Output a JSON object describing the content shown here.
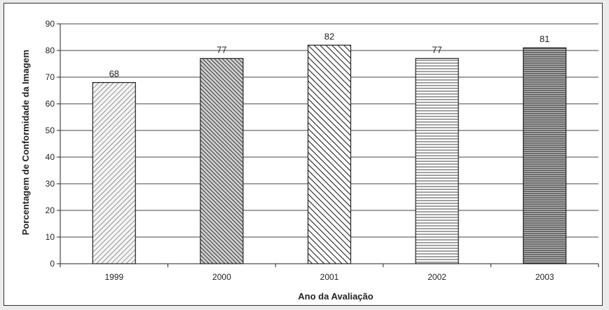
{
  "chart_data": {
    "type": "bar",
    "categories": [
      "1999",
      "2000",
      "2001",
      "2002",
      "2003"
    ],
    "values": [
      68,
      77,
      82,
      77,
      81
    ],
    "data_labels": [
      "68",
      "77",
      "82",
      "77",
      "81"
    ],
    "title": "",
    "xlabel": "Ano da Avaliação",
    "ylabel": "Porcentagem de Conformidade da Imagem",
    "ylim": [
      0,
      90
    ],
    "yticks": [
      "0",
      "10",
      "20",
      "30",
      "40",
      "50",
      "60",
      "70",
      "80",
      "90"
    ],
    "grid": true,
    "legend": "none",
    "bar_patterns": [
      "diagonal-up-light",
      "diagonal-down-dense",
      "diagonal-down-wide",
      "horizontal-light",
      "horizontal-dense"
    ],
    "colors": {
      "line": "#222222",
      "grid": "#444444",
      "background": "#ffffff",
      "page": "#ebebeb"
    }
  }
}
